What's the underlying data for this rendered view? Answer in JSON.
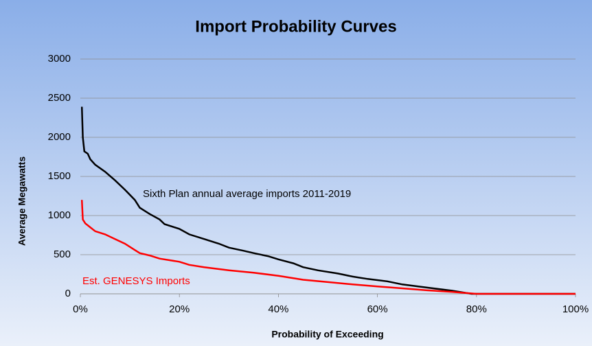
{
  "chart_data": {
    "type": "line",
    "title": "Import Probability Curves",
    "xlabel": "Probability of Exceeding",
    "ylabel": "Average Megawatts",
    "xlim": [
      0,
      100
    ],
    "xticks": [
      {
        "value": 0,
        "label": "0%"
      },
      {
        "value": 20,
        "label": "20%"
      },
      {
        "value": 40,
        "label": "40%"
      },
      {
        "value": 60,
        "label": "60%"
      },
      {
        "value": 80,
        "label": "80%"
      },
      {
        "value": 100,
        "label": "100%"
      }
    ],
    "ylim": [
      0,
      3000
    ],
    "yticks": [
      0,
      500,
      1000,
      1500,
      2000,
      2500,
      3000
    ],
    "grid": true,
    "series": [
      {
        "name": "Sixth Plan annual average imports 2011-2019",
        "color": "#000000",
        "x": [
          0.3,
          0.5,
          0.8,
          1.5,
          2,
          3,
          5,
          7,
          9,
          11,
          12,
          14,
          16,
          17,
          20,
          22,
          25,
          28,
          30,
          33,
          35,
          38,
          40,
          43,
          45,
          48,
          52,
          55,
          58,
          62,
          65,
          70,
          75,
          79,
          80,
          100
        ],
        "values": [
          2390,
          2000,
          1820,
          1790,
          1720,
          1650,
          1560,
          1450,
          1330,
          1200,
          1100,
          1020,
          950,
          890,
          830,
          760,
          700,
          640,
          590,
          550,
          520,
          480,
          440,
          390,
          340,
          300,
          260,
          220,
          190,
          160,
          120,
          80,
          40,
          0,
          0,
          0
        ]
      },
      {
        "name": "Est. GENESYS Imports",
        "color": "#ff0000",
        "x": [
          0.3,
          0.5,
          1,
          2,
          3,
          5,
          7,
          9,
          11,
          12,
          14,
          16,
          20,
          22,
          25,
          30,
          35,
          40,
          45,
          50,
          55,
          60,
          65,
          70,
          75,
          80,
          100
        ],
        "values": [
          1200,
          950,
          900,
          850,
          800,
          760,
          700,
          640,
          560,
          520,
          490,
          450,
          410,
          370,
          340,
          300,
          270,
          230,
          180,
          150,
          120,
          95,
          70,
          45,
          25,
          0,
          0
        ]
      }
    ]
  }
}
